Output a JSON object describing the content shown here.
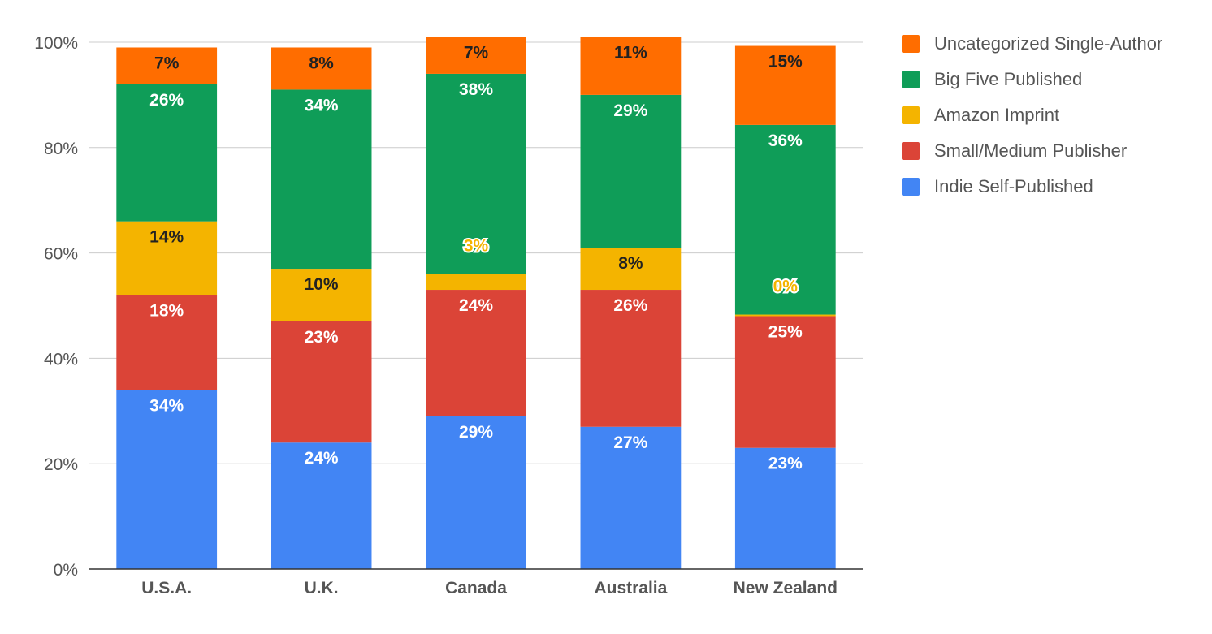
{
  "chart_data": {
    "type": "bar",
    "stacked": true,
    "categories": [
      "U.S.A.",
      "U.K.",
      "Canada",
      "Australia",
      "New Zealand"
    ],
    "series": [
      {
        "name": "Indie Self-Published",
        "color": "#4285F4",
        "values": [
          34,
          24,
          29,
          27,
          23
        ],
        "labels": [
          "34%",
          "24%",
          "29%",
          "27%",
          "23%"
        ],
        "label_color": "#ffffff"
      },
      {
        "name": "Small/Medium Publisher",
        "color": "#DB4437",
        "values": [
          18,
          23,
          24,
          26,
          25
        ],
        "labels": [
          "18%",
          "23%",
          "24%",
          "26%",
          "25%"
        ],
        "label_color": "#ffffff"
      },
      {
        "name": "Amazon Imprint",
        "color": "#F4B400",
        "values": [
          14,
          10,
          3,
          8,
          0.3
        ],
        "labels": [
          "14%",
          "10%",
          "3%",
          "8%",
          "0%"
        ],
        "label_color": "#222222"
      },
      {
        "name": "Big Five Published",
        "color": "#0F9D58",
        "values": [
          26,
          34,
          38,
          29,
          36
        ],
        "labels": [
          "26%",
          "34%",
          "38%",
          "29%",
          "36%"
        ],
        "label_color": "#ffffff"
      },
      {
        "name": "Uncategorized Single-Author",
        "color": "#FF6D00",
        "values": [
          7,
          8,
          7,
          11,
          15
        ],
        "labels": [
          "7%",
          "8%",
          "7%",
          "11%",
          "15%"
        ],
        "label_color": "#222222"
      }
    ],
    "ylim": [
      0,
      100
    ],
    "yticks": [
      "0%",
      "20%",
      "40%",
      "60%",
      "80%",
      "100%"
    ],
    "grid": true,
    "legend_position": "right",
    "title": "",
    "xlabel": "",
    "ylabel": ""
  }
}
